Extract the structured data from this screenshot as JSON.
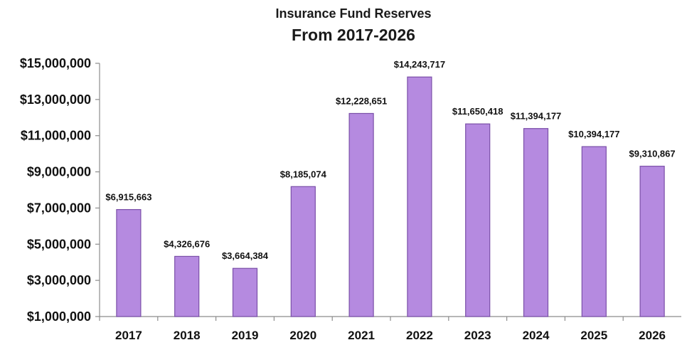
{
  "chart_data": {
    "type": "bar",
    "title": "Insurance Fund Reserves",
    "subtitle": "From 2017-2026",
    "xlabel": "",
    "ylabel": "",
    "categories": [
      "2017",
      "2018",
      "2019",
      "2020",
      "2021",
      "2022",
      "2023",
      "2024",
      "2025",
      "2026"
    ],
    "values": [
      6915663,
      4326676,
      3664384,
      8185074,
      12228651,
      14243717,
      11650418,
      11394177,
      10394177,
      9310867
    ],
    "data_labels": [
      "$6,915,663",
      "$4,326,676",
      "$3,664,384",
      "$8,185,074",
      "$12,228,651",
      "$14,243,717",
      "$11,650,418",
      "$11,394,177",
      "$10,394,177",
      "$9,310,867"
    ],
    "ylim": [
      1000000,
      15000000
    ],
    "yticks": [
      1000000,
      3000000,
      5000000,
      7000000,
      9000000,
      11000000,
      13000000,
      15000000
    ],
    "ytick_labels": [
      "$1,000,000",
      "$3,000,000",
      "$5,000,000",
      "$7,000,000",
      "$9,000,000",
      "$11,000,000",
      "$13,000,000",
      "$15,000,000"
    ],
    "grid": false,
    "legend": "none",
    "bar_color": "#b58ae0",
    "bar_edge_color": "#7a4fa8"
  }
}
